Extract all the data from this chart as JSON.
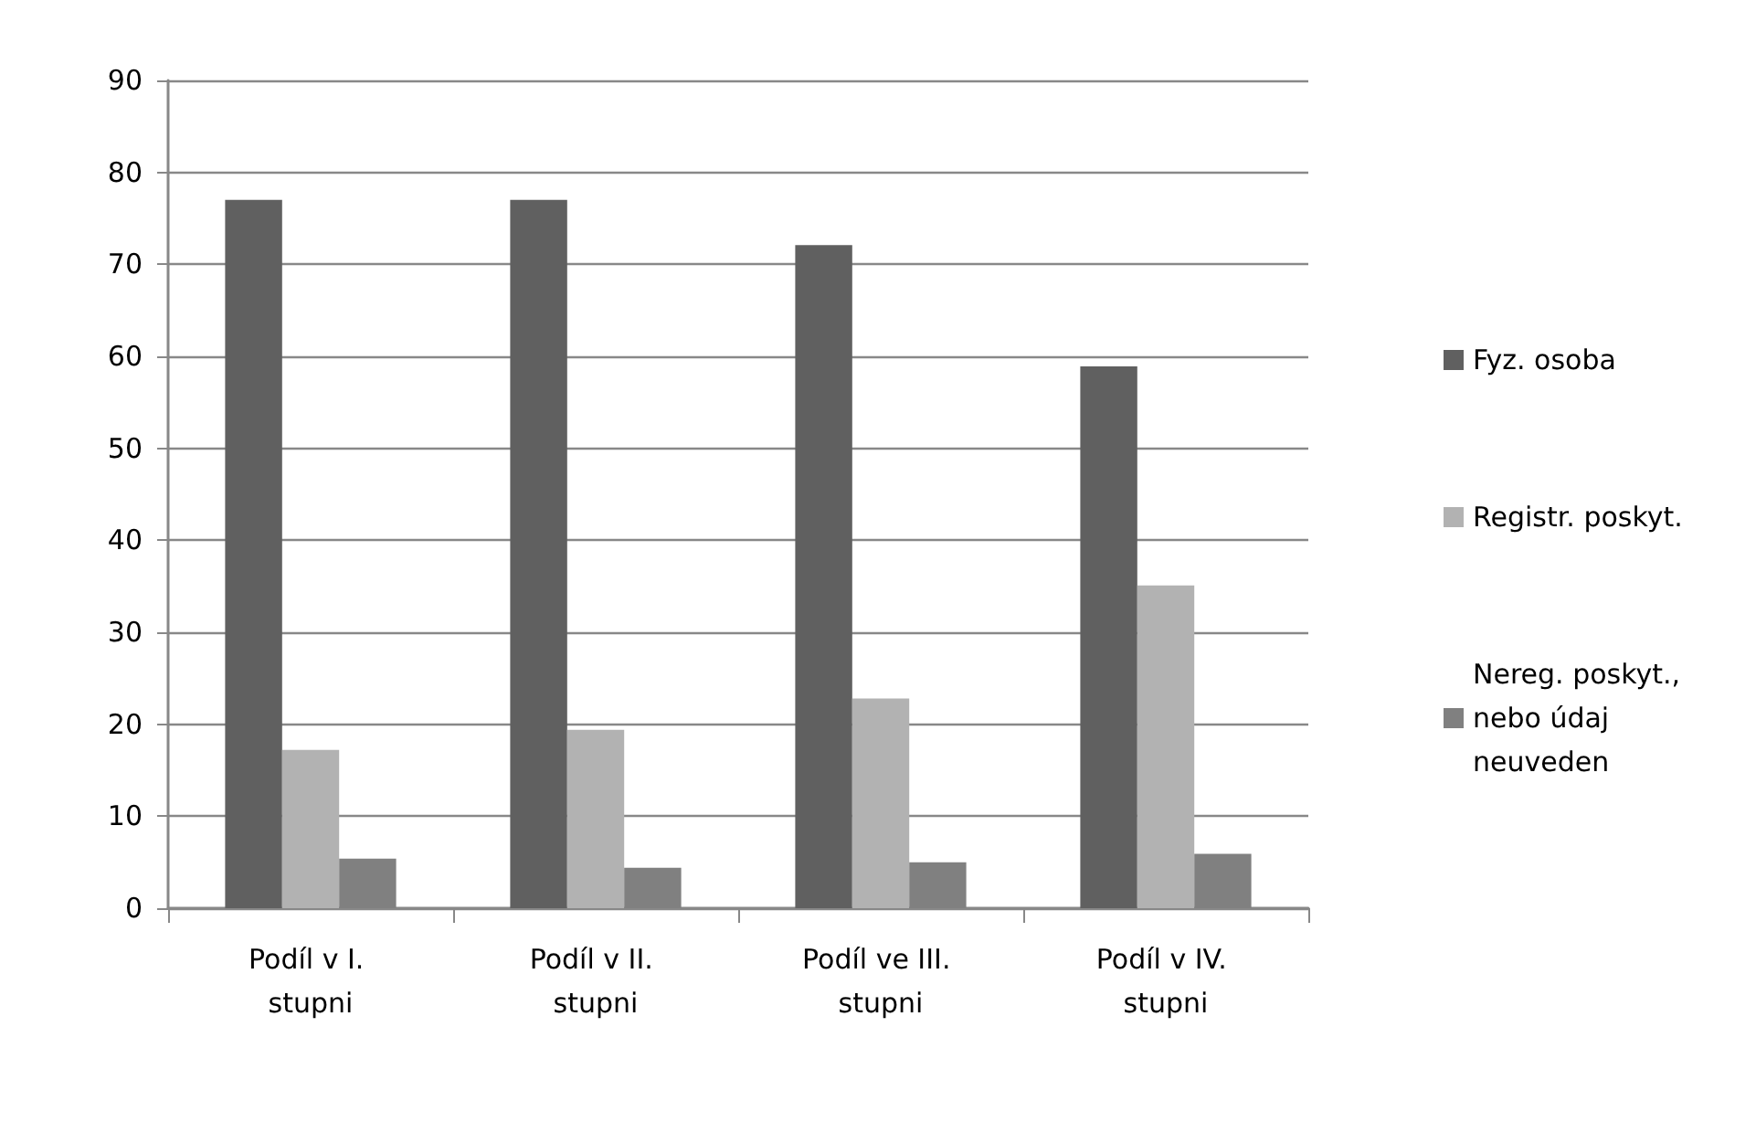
{
  "chart_data": {
    "type": "bar",
    "categories": [
      "Podíl v I. stupni",
      "Podíl v II. stupni",
      "Podíl ve III. stupni",
      "Podíl v IV. stupni"
    ],
    "series": [
      {
        "name": "Fyz. osoba",
        "color": "#606060",
        "values": [
          77,
          77,
          72.1,
          58.9
        ]
      },
      {
        "name": "Registr. poskyt.",
        "color": "#b2b2b2",
        "values": [
          17.2,
          19.4,
          22.8,
          35.1
        ]
      },
      {
        "name": "Nereg. poskyt., nebo údaj neuveden",
        "color": "#808080",
        "values": [
          5.4,
          4.4,
          5,
          5.9
        ]
      }
    ],
    "ylim": [
      0,
      90
    ],
    "yticks": [
      0,
      10,
      20,
      30,
      40,
      50,
      60,
      70,
      80,
      90
    ],
    "grid": "y",
    "legend": "right"
  }
}
